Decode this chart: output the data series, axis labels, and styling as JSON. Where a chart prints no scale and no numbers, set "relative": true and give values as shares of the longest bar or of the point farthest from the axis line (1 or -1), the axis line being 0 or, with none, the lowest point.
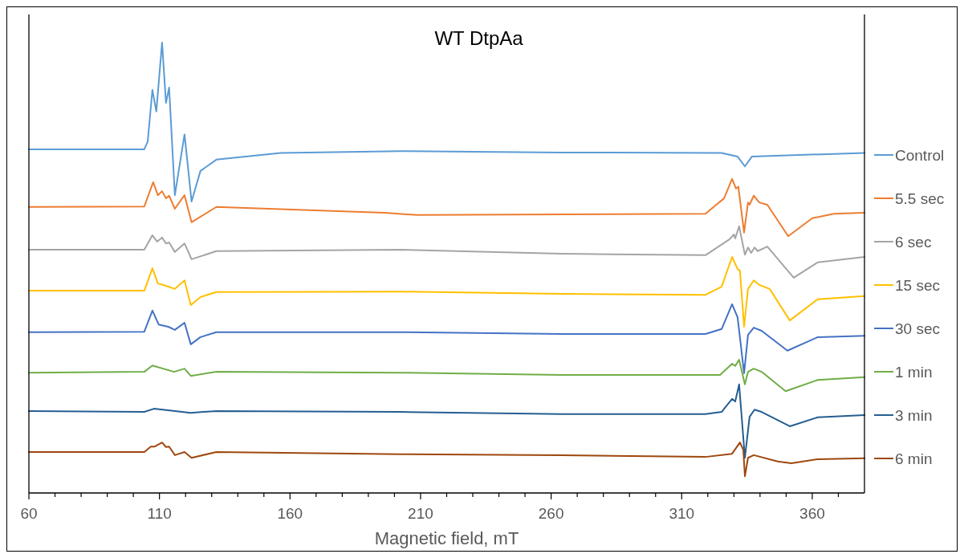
{
  "chart_data": {
    "type": "line",
    "title": "WT DtpAa",
    "xlabel": "Magnetic field, mT",
    "relative": true,
    "xlim": [
      60,
      380
    ],
    "xticks": [
      60,
      {
        "value": 70,
        "label": null
      },
      {
        "value": 80,
        "label": null
      },
      {
        "value": 90,
        "label": null
      },
      {
        "value": 100,
        "label": null
      },
      110,
      {
        "value": 120,
        "label": null
      },
      {
        "value": 130,
        "label": null
      },
      {
        "value": 140,
        "label": null
      },
      {
        "value": 150,
        "label": null
      },
      160,
      {
        "value": 170,
        "label": null
      },
      {
        "value": 180,
        "label": null
      },
      {
        "value": 190,
        "label": null
      },
      {
        "value": 200,
        "label": null
      },
      210,
      {
        "value": 220,
        "label": null
      },
      {
        "value": 230,
        "label": null
      },
      {
        "value": 240,
        "label": null
      },
      {
        "value": 250,
        "label": null
      },
      260,
      {
        "value": 270,
        "label": null
      },
      {
        "value": 280,
        "label": null
      },
      {
        "value": 290,
        "label": null
      },
      {
        "value": 300,
        "label": null
      },
      310,
      {
        "value": 320,
        "label": null
      },
      {
        "value": 330,
        "label": null
      },
      {
        "value": 340,
        "label": null
      },
      {
        "value": 350,
        "label": null
      },
      360,
      {
        "value": 370,
        "label": null
      }
    ],
    "legend": "right",
    "series": [
      {
        "name": "Control",
        "color": "#5b9bd5",
        "x": [
          60,
          104.2,
          105.5,
          107.3,
          108.8,
          111.0,
          112.5,
          113.7,
          115.9,
          119.6,
          122.3,
          125.7,
          131.8,
          156.4,
          202.5,
          263.9,
          325.3,
          331.4,
          334.2,
          336.9,
          380
        ],
        "values": [
          0.763,
          0.763,
          0.78,
          0.895,
          0.847,
          1.0,
          0.866,
          0.9,
          0.661,
          0.796,
          0.647,
          0.715,
          0.74,
          0.755,
          0.759,
          0.756,
          0.755,
          0.747,
          0.725,
          0.747,
          0.755
        ]
      },
      {
        "name": "5.5 sec",
        "color": "#ed7d31",
        "x": [
          60,
          104.2,
          107.6,
          109.4,
          111.0,
          112.5,
          113.7,
          115.9,
          119.6,
          122.3,
          131.8,
          196.3,
          208.6,
          319.1,
          326.2,
          329.3,
          330.8,
          331.7,
          333.9,
          335.4,
          336.0,
          337.6,
          339.7,
          342.8,
          350.8,
          360,
          368.3,
          380
        ],
        "values": [
          0.635,
          0.636,
          0.69,
          0.661,
          0.67,
          0.654,
          0.66,
          0.631,
          0.661,
          0.601,
          0.635,
          0.622,
          0.617,
          0.62,
          0.654,
          0.697,
          0.676,
          0.68,
          0.578,
          0.645,
          0.64,
          0.66,
          0.645,
          0.64,
          0.57,
          0.61,
          0.62,
          0.622
        ]
      },
      {
        "name": "6 sec",
        "color": "#a5a5a5",
        "x": [
          60,
          104.2,
          107.3,
          109.1,
          111.0,
          112.5,
          113.7,
          115.9,
          119.6,
          122.3,
          131.8,
          202.5,
          263.9,
          319.1,
          328.3,
          330.0,
          330.5,
          332.0,
          334.2,
          335.4,
          336.6,
          337.9,
          339.1,
          342.8,
          352.9,
          362.1,
          380
        ],
        "values": [
          0.54,
          0.54,
          0.572,
          0.558,
          0.567,
          0.554,
          0.556,
          0.535,
          0.554,
          0.519,
          0.537,
          0.54,
          0.531,
          0.528,
          0.563,
          0.574,
          0.565,
          0.592,
          0.529,
          0.545,
          0.533,
          0.545,
          0.537,
          0.547,
          0.478,
          0.512,
          0.524
        ]
      },
      {
        "name": "15 sec",
        "color": "#ffc000",
        "x": [
          60,
          104.2,
          107.3,
          109.4,
          111.3,
          113.4,
          115.9,
          119.6,
          122.0,
          125.7,
          131.8,
          202.5,
          263.9,
          319.1,
          325.3,
          329.3,
          331.4,
          332.3,
          333.9,
          335.4,
          337.6,
          339.7,
          343.7,
          351.4,
          362.1,
          380
        ],
        "values": [
          0.449,
          0.449,
          0.499,
          0.465,
          0.462,
          0.458,
          0.453,
          0.472,
          0.417,
          0.435,
          0.446,
          0.447,
          0.442,
          0.44,
          0.458,
          0.524,
          0.497,
          0.494,
          0.369,
          0.453,
          0.472,
          0.462,
          0.453,
          0.383,
          0.43,
          0.437
        ]
      },
      {
        "name": "30 sec",
        "color": "#4472c4",
        "x": [
          60,
          104.2,
          107.3,
          109.7,
          113.4,
          115.9,
          119.6,
          122.0,
          125.7,
          131.8,
          202.5,
          263.9,
          319.1,
          325.3,
          329.3,
          331.4,
          333.9,
          335.4,
          337.6,
          340.6,
          350.5,
          362.1,
          380
        ],
        "values": [
          0.357,
          0.358,
          0.405,
          0.374,
          0.369,
          0.362,
          0.378,
          0.33,
          0.346,
          0.357,
          0.357,
          0.353,
          0.353,
          0.364,
          0.419,
          0.39,
          0.266,
          0.351,
          0.367,
          0.36,
          0.316,
          0.346,
          0.349
        ]
      },
      {
        "name": "1 min",
        "color": "#70ad47",
        "x": [
          60,
          104.2,
          107.3,
          115.6,
          119.6,
          122.0,
          131.8,
          202.5,
          263.9,
          319.1,
          324.7,
          329.3,
          330.5,
          332.0,
          334.2,
          335.4,
          337.6,
          340.6,
          349.8,
          362.1,
          380
        ],
        "values": [
          0.267,
          0.269,
          0.283,
          0.269,
          0.276,
          0.26,
          0.269,
          0.267,
          0.262,
          0.262,
          0.262,
          0.287,
          0.282,
          0.296,
          0.241,
          0.269,
          0.276,
          0.269,
          0.226,
          0.251,
          0.257
        ]
      },
      {
        "name": "3 min",
        "color": "#255e91",
        "x": [
          60,
          104.2,
          107.9,
          122.0,
          131.8,
          202.5,
          263.9,
          319.1,
          325.3,
          329.3,
          330.5,
          332.0,
          334.2,
          336.0,
          337.9,
          340.6,
          351.4,
          362.1,
          380
        ],
        "values": [
          0.182,
          0.18,
          0.187,
          0.178,
          0.182,
          0.18,
          0.175,
          0.175,
          0.18,
          0.209,
          0.203,
          0.241,
          0.078,
          0.169,
          0.185,
          0.18,
          0.148,
          0.168,
          0.173
        ]
      },
      {
        "name": "6 min",
        "color": "#9e480e",
        "x": [
          60,
          104.2,
          106.7,
          108.2,
          111.0,
          112.5,
          113.7,
          115.9,
          119.6,
          122.3,
          131.8,
          202.5,
          263.9,
          319.1,
          329.3,
          332.3,
          333.6,
          334.2,
          335.4,
          337.6,
          346.8,
          352.0,
          362.1,
          380
        ],
        "values": [
          0.091,
          0.091,
          0.103,
          0.103,
          0.112,
          0.102,
          0.103,
          0.084,
          0.091,
          0.078,
          0.091,
          0.086,
          0.084,
          0.08,
          0.087,
          0.112,
          0.096,
          0.037,
          0.078,
          0.084,
          0.07,
          0.066,
          0.075,
          0.077
        ]
      }
    ]
  }
}
